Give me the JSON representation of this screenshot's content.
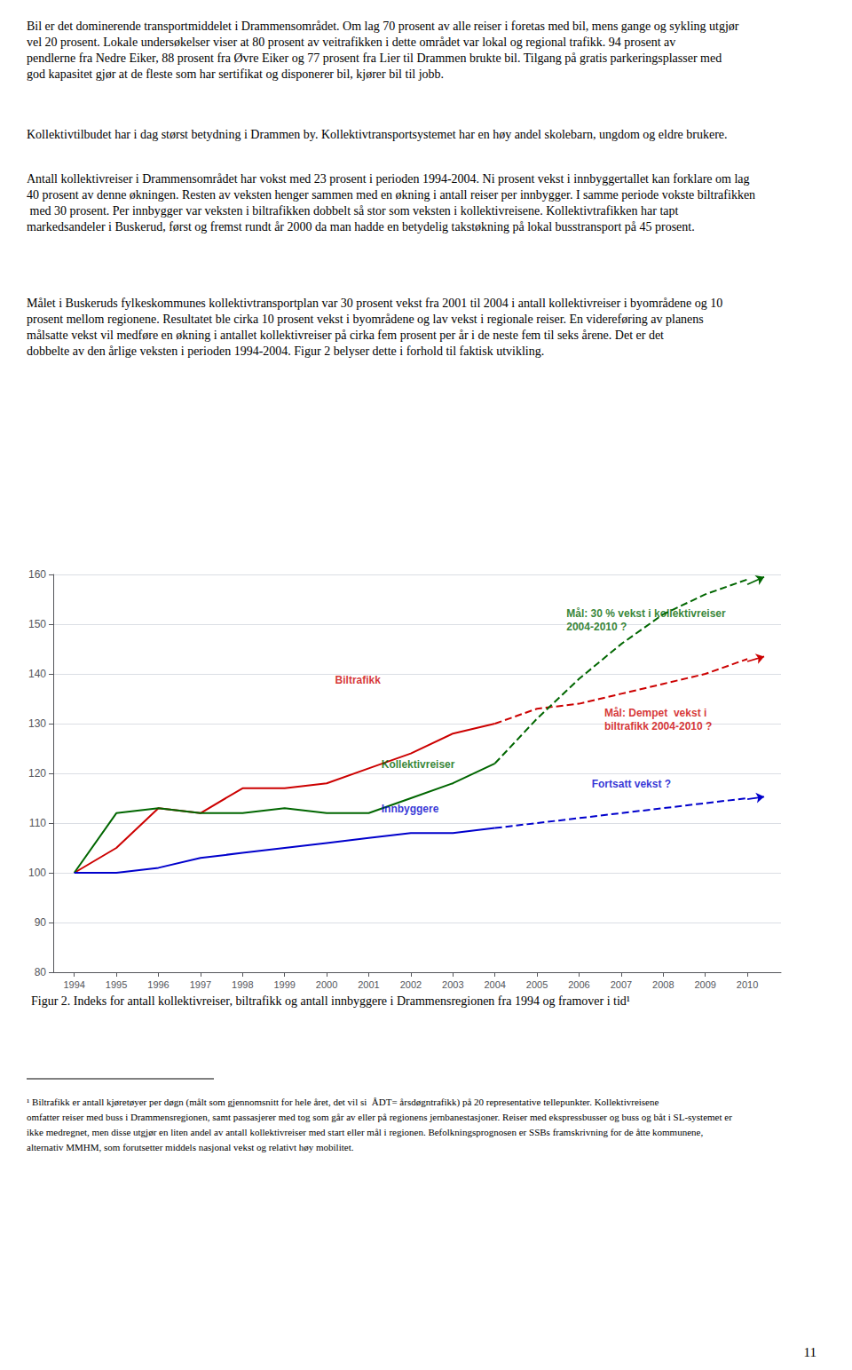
{
  "chart_data": {
    "type": "line",
    "title": "Figur 2. Indeks for antall kollektivreiser, biltrafikk og antall innbyggere i Drammensregionen fra 1994 og framover i tid¹",
    "series": [
      {
        "name": "Biltrafikk",
        "color": "#CC0000",
        "line_style": "solid",
        "x": [
          1994,
          1995,
          1996,
          1997,
          1998,
          1999,
          2000,
          2001,
          2002,
          2003,
          2004
        ],
        "values": [
          100,
          105,
          113,
          112,
          117,
          117,
          118,
          121,
          124,
          128,
          130
        ]
      },
      {
        "name": "Kollektivreiser",
        "color": "#006600",
        "line_style": "solid",
        "x": [
          1994,
          1995,
          1996,
          1997,
          1998,
          1999,
          2000,
          2001,
          2002,
          2003,
          2004
        ],
        "values": [
          100,
          112,
          113,
          112,
          112,
          113,
          112,
          112,
          115,
          118,
          122
        ]
      },
      {
        "name": "Innbyggere",
        "color": "#0000CC",
        "line_style": "solid",
        "x": [
          1994,
          1995,
          1996,
          1997,
          1998,
          1999,
          2000,
          2001,
          2002,
          2003,
          2004
        ],
        "values": [
          100,
          100,
          101,
          103,
          104,
          105,
          106,
          107,
          108,
          108,
          109
        ]
      },
      {
        "name": "Biltrafikk",
        "color": "#CC0000",
        "line_style": "dashed",
        "x": [
          2004,
          2005,
          2006,
          2007,
          2008,
          2009,
          2010
        ],
        "values": [
          130,
          133,
          134,
          136,
          138,
          140,
          143
        ]
      },
      {
        "name": "Kollektivreiser",
        "color": "#006600",
        "line_style": "dashed",
        "x": [
          2004,
          2005,
          2006,
          2007,
          2008,
          2009,
          2010
        ],
        "values": [
          122,
          131,
          139,
          146,
          152,
          156,
          159
        ]
      },
      {
        "name": "Innbyggere",
        "color": "#0000CC",
        "line_style": "dashed",
        "x": [
          2004,
          2005,
          2006,
          2007,
          2008,
          2009,
          2010
        ],
        "values": [
          109,
          110,
          111,
          112,
          113,
          114,
          115
        ]
      }
    ],
    "arrows": [
      {
        "from": [
          2010.0,
          142.5
        ],
        "to": [
          2010.4,
          143.5
        ],
        "color": "#CC0000"
      },
      {
        "from": [
          2010.0,
          158.0
        ],
        "to": [
          2010.4,
          159.5
        ],
        "color": "#006600"
      },
      {
        "from": [
          2010.0,
          114.8
        ],
        "to": [
          2010.4,
          115.3
        ],
        "color": "#0000CC"
      }
    ],
    "annotations": [
      {
        "text": "Biltrafikk",
        "x": 2000.2,
        "y": 137.5,
        "color": "#CC0000"
      },
      {
        "text": "Kollektivreiser",
        "x": 2001.3,
        "y": 120.5,
        "color": "#006600"
      },
      {
        "text": "Innbyggere",
        "x": 2001.3,
        "y": 111.5,
        "color": "#0000CC"
      },
      {
        "text": "Mål: 30 % vekst i kollektivreiser\n2004-2010 ?",
        "x": 2005.7,
        "y": 153.5,
        "color": "#006600"
      },
      {
        "text": "Mål: Dempet  vekst i\nbiltrafikk 2004-2010 ?",
        "x": 2006.6,
        "y": 133.5,
        "color": "#CC0000"
      },
      {
        "text": "Fortsatt vekst ?",
        "x": 2006.3,
        "y": 116.5,
        "color": "#0000CC"
      }
    ],
    "xlim": [
      1993.5,
      2010.8
    ],
    "xticks": [
      1994,
      1995,
      1996,
      1997,
      1998,
      1999,
      2000,
      2001,
      2002,
      2003,
      2004,
      2005,
      2006,
      2007,
      2008,
      2009,
      2010
    ],
    "ylim": [
      80,
      160
    ],
    "yticks": [
      80,
      90,
      100,
      110,
      120,
      130,
      140,
      150,
      160
    ],
    "grid": true
  },
  "page_text": {
    "paragraphs": [
      "Bil er det dominerende transportmiddelet i Drammensområdet. Om lag 70 prosent av alle reiser i foretas med bil, mens gange og sykling utgjør vel 20 prosent. Lokale undersøkelser viser at 80 prosent av veitrafikken i dette området var lokal og regional trafikk. 94 prosent av pendlerne fra Nedre Eiker, 88 prosent fra Øvre Eiker og 77 prosent fra Lier til Drammen brukte bil. Tilgang på gratis parkeringsplasser med god kapasitet gjør at de fleste som har sertifikat og disponerer bil, kjører bil til jobb.",
      "Kollektivtilbudet har i dag størst betydning i Drammen by. Kollektivtransportsystemet har en høy andel skolebarn, ungdom og eldre brukere.",
      "Antall kollektivreiser i Drammensområdet har vokst med 23 prosent i perioden 1994-2004. Ni prosent vekst i innbyggertallet kan forklare om lag 40 prosent av denne økningen. Resten av veksten henger sammen med en økning i antall reiser per innbygger. I samme periode vokste biltrafikken med 30 prosent. Per innbygger var veksten i biltrafikken dobbelt så stor som veksten i kollektivreisene. Kollektivtrafikken har tapt markedsandeler i Buskerud, først og fremst rundt år 2000 da man hadde en betydelig takstøkning på lokal busstransport på 45 prosent.",
      "Målet i Buskeruds fylkeskommunes kollektivtransportplan var 30 prosent vekst fra 2001 til 2004 i antall kollektivreiser i byområdene og 10 prosent mellom regionene. Resultatet ble cirka 10 prosent vekst i byområdene og lav vekst i regionale reiser. En videreføring av planens målsatte vekst vil medføre en økning i antallet kollektivreiser på cirka fem prosent per år i de neste fem til seks årene. Det er det dobbelte av den årlige veksten i perioden 1994-2004. Figur 2 belyser dette i forhold til faktisk utvikling."
    ],
    "footnote": "¹ Biltrafikk er antall kjøretøyer per døgn (målt som gjennomsnitt for hele året, det vil si  ÅDT= årsdøgntrafikk) på 20 representative tellepunkter. Kollektivreisene omfatter reiser med buss i Drammensregionen, samt passasjerer med tog som går av eller på regionens jernbanestasjoner. Reiser med ekspressbusser og buss og båt i SL-systemet er ikke medregnet, men disse utgjør en liten andel av antall kollektivreiser med start eller mål i regionen. Befolkningsprognosen er SSBs framskrivning for de åtte kommunene, alternativ MMHM, som forutsetter middels nasjonal vekst og relativt høy mobilitet.",
    "page_number": 11
  }
}
